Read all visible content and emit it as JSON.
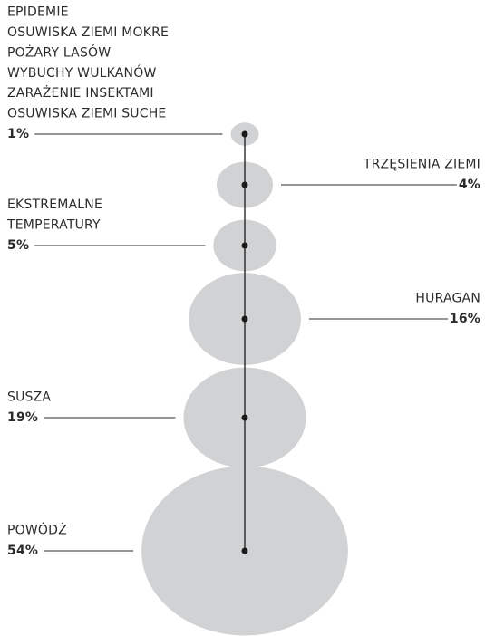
{
  "chart_data": {
    "type": "bubble",
    "categories": [
      [
        "EPIDEMIE",
        "OSUWISKA ZIEMI MOKRE",
        "POŻARY LASÓW",
        "WYBUCHY WULKANÓW",
        "ZARAŻENIE INSEKTAMI",
        "OSUWISKA ZIEMI SUCHE"
      ],
      [
        "TRZĘSIENIA ZIEMI"
      ],
      [
        "EKSTREMALNE",
        "TEMPERATURY"
      ],
      [
        "HURAGAN"
      ],
      [
        "SUSZA"
      ],
      [
        "POWÓDŹ"
      ]
    ],
    "values": [
      1,
      4,
      5,
      16,
      19,
      54
    ],
    "value_labels": [
      "1%",
      "4%",
      "5%",
      "16%",
      "19%",
      "54%"
    ],
    "color": "#d1d2d4"
  }
}
